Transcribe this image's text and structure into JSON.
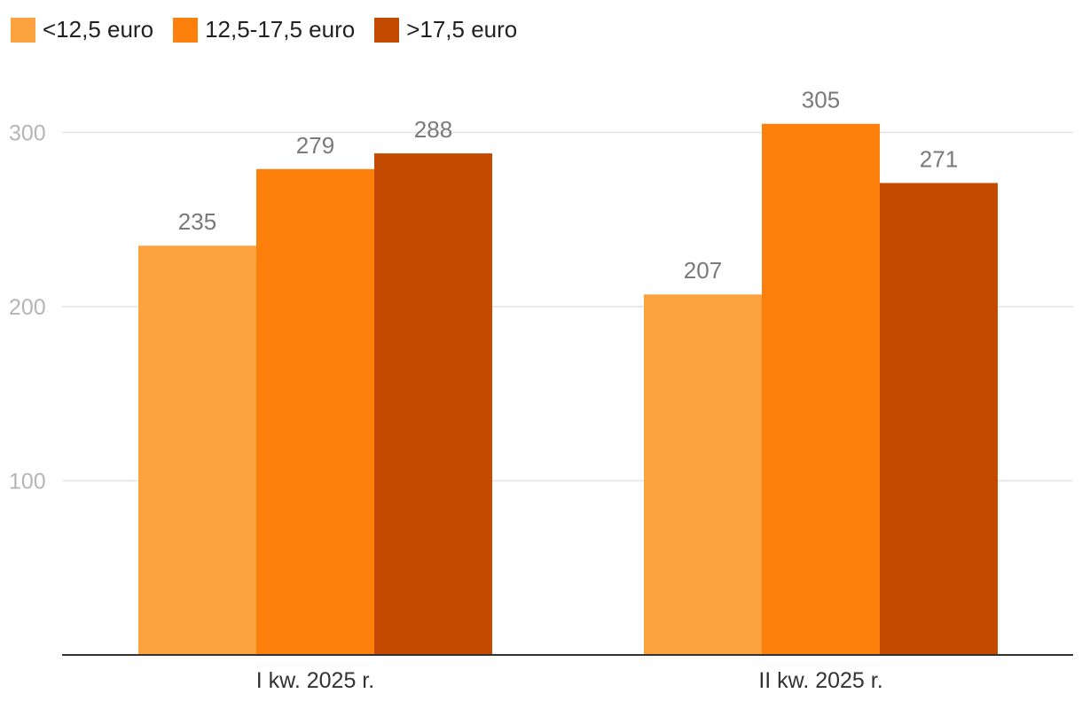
{
  "chart_data": {
    "type": "bar",
    "categories": [
      "I kw. 2025 r.",
      "II kw. 2025 r."
    ],
    "series": [
      {
        "name": "<12,5 euro",
        "values": [
          235,
          207
        ],
        "color": "#fca33f"
      },
      {
        "name": "12,5-17,5 euro",
        "values": [
          279,
          305
        ],
        "color": "#fd7f0c"
      },
      {
        "name": ">17,5 euro",
        "values": [
          288,
          271
        ],
        "color": "#c44a00"
      }
    ],
    "yticks": [
      100,
      200,
      300
    ],
    "ylim": [
      0,
      300
    ],
    "grid": true,
    "legend": "top-left"
  }
}
